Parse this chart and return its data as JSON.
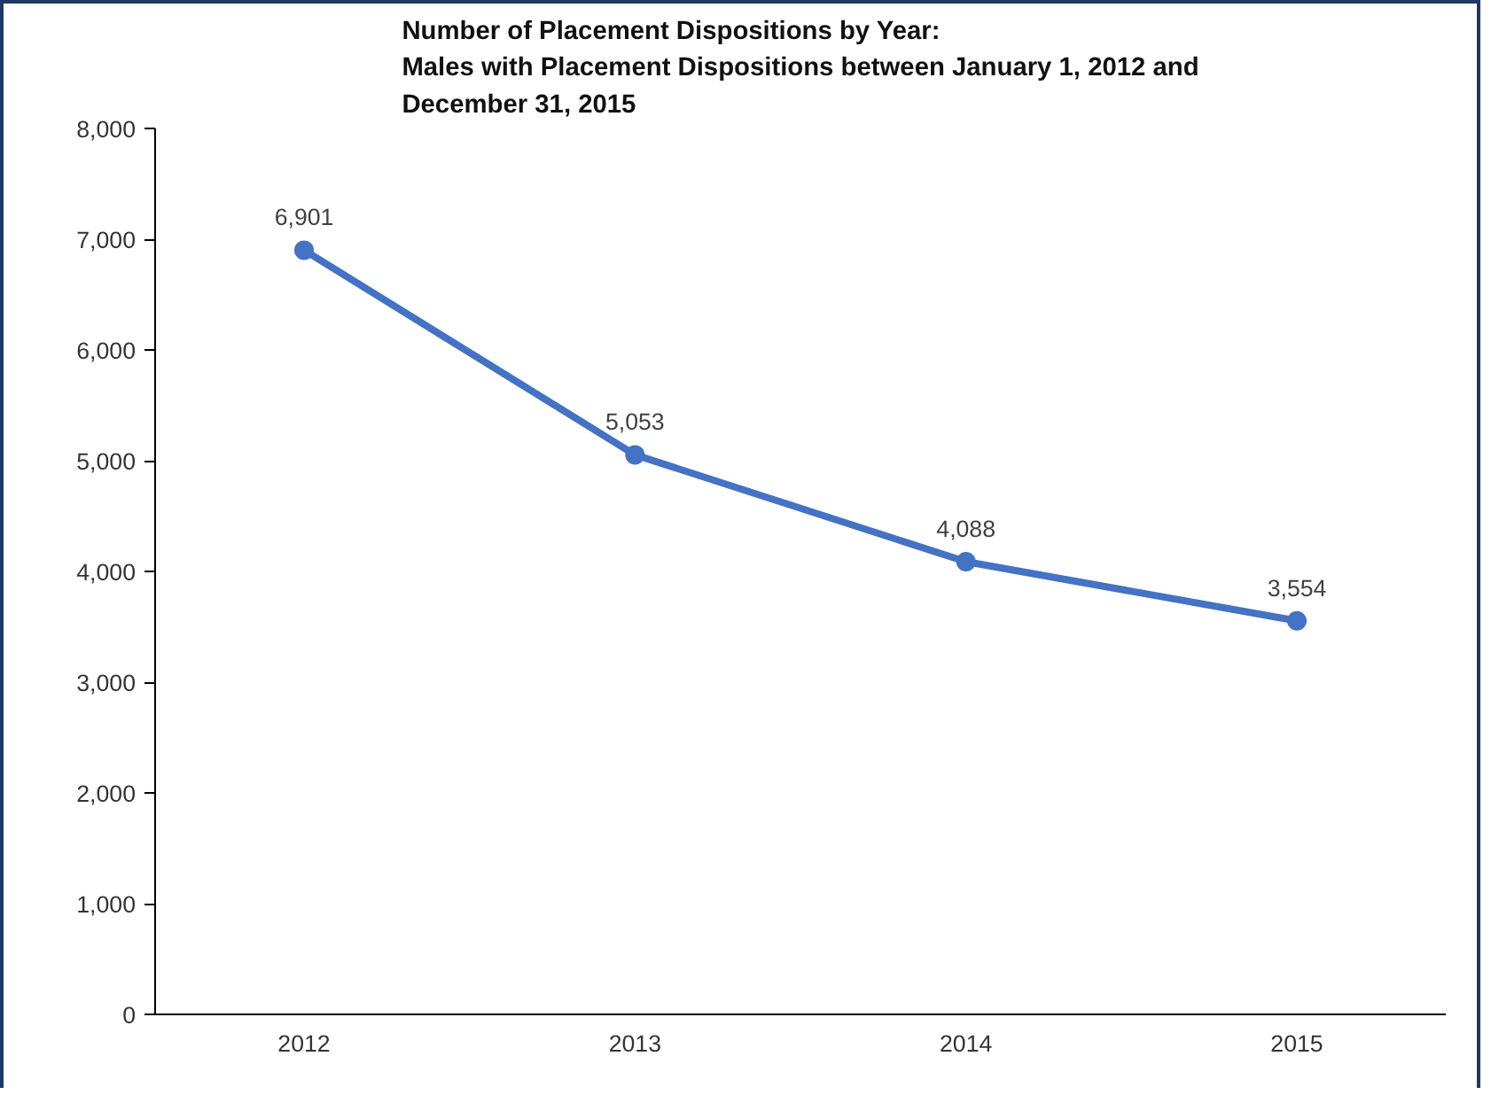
{
  "chart_data": {
    "type": "line",
    "title": "Number of Placement Dispositions by Year:\nMales with Placement Dispositions between January 1, 2012 and\nDecember 31, 2015",
    "categories": [
      "2012",
      "2013",
      "2014",
      "2015"
    ],
    "series": [
      {
        "color": "#4472c4",
        "values": [
          6901,
          5053,
          4088,
          3554
        ],
        "value_labels": [
          "6,901",
          "5,053",
          "4,088",
          "3,554"
        ]
      }
    ],
    "ylim": [
      0,
      8000
    ],
    "yticks": [
      0,
      {
        "value": 1000,
        "label": "1,000"
      },
      {
        "value": 2000,
        "label": "2,000"
      },
      {
        "value": 3000,
        "label": "3,000"
      },
      {
        "value": 4000,
        "label": "4,000"
      },
      {
        "value": 5000,
        "label": "5,000"
      },
      {
        "value": 6000,
        "label": "6,000"
      },
      {
        "value": 7000,
        "label": "7,000"
      },
      {
        "value": 8000,
        "label": "8,000"
      }
    ],
    "grid": false,
    "marker": "circle",
    "line_style": "solid"
  }
}
